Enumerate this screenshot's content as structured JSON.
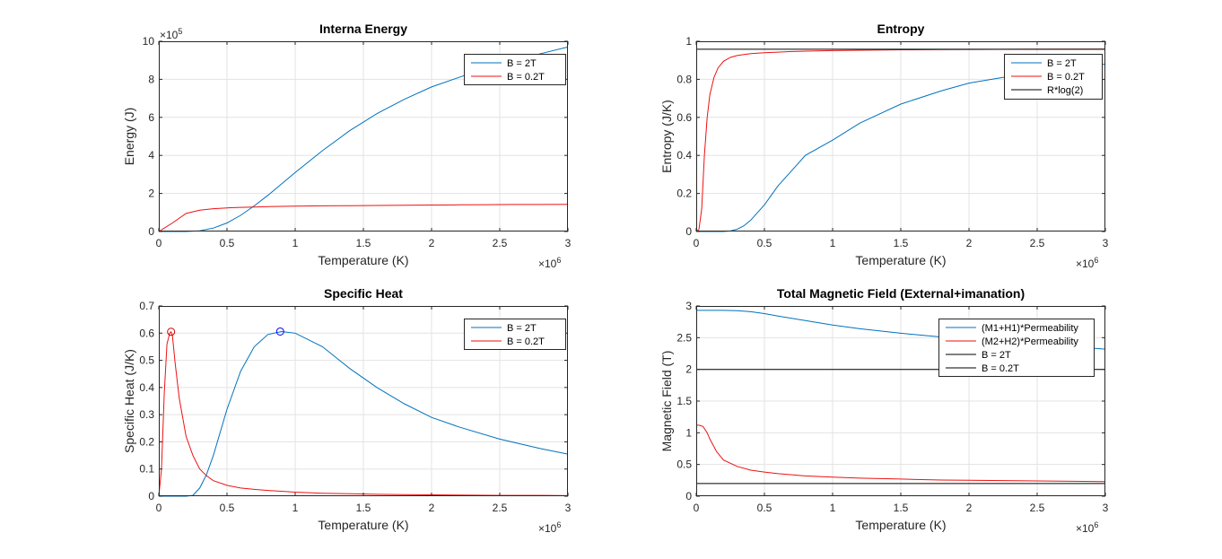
{
  "chart_data": [
    {
      "type": "line",
      "title": "Interna Energy",
      "xlabel": "Temperature (K)",
      "ylabel": "Energy (J)",
      "x_multiplier": "×10",
      "x_exponent": "6",
      "y_multiplier": "×10",
      "y_exponent": "5",
      "xlim": [
        0,
        3
      ],
      "ylim": [
        0,
        10
      ],
      "x_ticks": [
        "0",
        "0.5",
        "1",
        "1.5",
        "2",
        "2.5",
        "3"
      ],
      "y_ticks": [
        "0",
        "2",
        "4",
        "6",
        "8",
        "10"
      ],
      "grid": true,
      "legend": "top-right",
      "x": [
        0,
        0.1,
        0.2,
        0.3,
        0.4,
        0.5,
        0.6,
        0.7,
        0.8,
        0.9,
        1.0,
        1.2,
        1.4,
        1.6,
        1.8,
        2.0,
        2.2,
        2.4,
        2.6,
        2.8,
        3.0
      ],
      "series": [
        {
          "name": "B = 2T",
          "color": "#0072BD",
          "values": [
            0,
            0,
            0,
            0.04,
            0.18,
            0.45,
            0.85,
            1.35,
            1.9,
            2.5,
            3.1,
            4.25,
            5.3,
            6.2,
            6.95,
            7.6,
            8.1,
            8.6,
            9.0,
            9.35,
            9.7
          ]
        },
        {
          "name": "B = 0.2T",
          "color": "#EE1111",
          "values": [
            0,
            0.45,
            0.95,
            1.12,
            1.2,
            1.24,
            1.27,
            1.29,
            1.31,
            1.32,
            1.33,
            1.35,
            1.36,
            1.37,
            1.38,
            1.39,
            1.4,
            1.41,
            1.42,
            1.42,
            1.43
          ]
        }
      ],
      "markers": []
    },
    {
      "type": "line",
      "title": "Entropy",
      "xlabel": "Temperature (K)",
      "ylabel": "Entropy (J/K)",
      "x_multiplier": "×10",
      "x_exponent": "6",
      "y_multiplier": "",
      "y_exponent": "",
      "xlim": [
        0,
        3
      ],
      "ylim": [
        0,
        1
      ],
      "x_ticks": [
        "0",
        "0.5",
        "1",
        "1.5",
        "2",
        "2.5",
        "3"
      ],
      "y_ticks": [
        "0",
        "0.2",
        "0.4",
        "0.6",
        "0.8",
        "1"
      ],
      "grid": true,
      "legend": "top-right",
      "x": [
        0,
        0.02,
        0.04,
        0.06,
        0.08,
        0.1,
        0.13,
        0.16,
        0.2,
        0.25,
        0.3,
        0.35,
        0.4,
        0.5,
        0.6,
        0.7,
        0.8,
        1.0,
        1.2,
        1.5,
        1.8,
        2.0,
        2.5,
        3.0
      ],
      "series": [
        {
          "name": "B = 2T",
          "color": "#0072BD",
          "values": [
            0,
            0,
            0,
            0,
            0,
            0,
            0,
            0,
            0,
            0.003,
            0.012,
            0.03,
            0.06,
            0.14,
            0.24,
            0.32,
            0.4,
            0.48,
            0.57,
            0.67,
            0.74,
            0.78,
            0.84,
            0.88
          ]
        },
        {
          "name": "B = 0.2T",
          "color": "#EE1111",
          "values": [
            0,
            0.01,
            0.12,
            0.4,
            0.6,
            0.72,
            0.81,
            0.86,
            0.895,
            0.915,
            0.925,
            0.93,
            0.935,
            0.94,
            0.943,
            0.946,
            0.948,
            0.951,
            0.953,
            0.955,
            0.956,
            0.957,
            0.958,
            0.959
          ]
        },
        {
          "name": "R*log(2)",
          "color": "#000000",
          "values": [
            0.958,
            0.958,
            0.958,
            0.958,
            0.958,
            0.958,
            0.958,
            0.958,
            0.958,
            0.958,
            0.958,
            0.958,
            0.958,
            0.958,
            0.958,
            0.958,
            0.958,
            0.958,
            0.958,
            0.958,
            0.958,
            0.958,
            0.958,
            0.958
          ]
        }
      ],
      "markers": []
    },
    {
      "type": "line",
      "title": "Specific Heat",
      "xlabel": "Temperature (K)",
      "ylabel": "Specific Heat (J/K)",
      "x_multiplier": "×10",
      "x_exponent": "6",
      "y_multiplier": "",
      "y_exponent": "",
      "xlim": [
        0,
        3
      ],
      "ylim": [
        0,
        0.7
      ],
      "x_ticks": [
        "0",
        "0.5",
        "1",
        "1.5",
        "2",
        "2.5",
        "3"
      ],
      "y_ticks": [
        "0",
        "0.1",
        "0.2",
        "0.3",
        "0.4",
        "0.5",
        "0.6",
        "0.7"
      ],
      "grid": true,
      "legend": "top-right",
      "x": [
        0,
        0.02,
        0.04,
        0.06,
        0.08,
        0.09,
        0.1,
        0.12,
        0.15,
        0.2,
        0.25,
        0.3,
        0.35,
        0.4,
        0.5,
        0.6,
        0.7,
        0.8,
        0.9,
        1.0,
        1.2,
        1.4,
        1.6,
        1.8,
        2.0,
        2.2,
        2.5,
        2.8,
        3.0
      ],
      "series": [
        {
          "name": "B = 2T",
          "color": "#0072BD",
          "values": [
            0,
            0,
            0,
            0,
            0,
            0,
            0,
            0,
            0,
            0,
            0.003,
            0.03,
            0.08,
            0.15,
            0.32,
            0.46,
            0.55,
            0.595,
            0.606,
            0.6,
            0.55,
            0.47,
            0.4,
            0.34,
            0.29,
            0.255,
            0.21,
            0.175,
            0.155
          ]
        },
        {
          "name": "B = 0.2T",
          "color": "#EE1111",
          "values": [
            0,
            0.1,
            0.38,
            0.56,
            0.6,
            0.605,
            0.59,
            0.49,
            0.36,
            0.22,
            0.15,
            0.1,
            0.075,
            0.057,
            0.04,
            0.03,
            0.025,
            0.021,
            0.018,
            0.015,
            0.011,
            0.009,
            0.007,
            0.006,
            0.005,
            0.004,
            0.003,
            0.003,
            0.002
          ]
        }
      ],
      "markers": [
        {
          "series": "B = 2T",
          "color": "#0000FF",
          "x": 0.89,
          "y": 0.606
        },
        {
          "series": "B = 0.2T",
          "color": "#CC0000",
          "x": 0.09,
          "y": 0.605
        }
      ]
    },
    {
      "type": "line",
      "title": "Total Magnetic Field (External+imanation)",
      "xlabel": "Temperature (K)",
      "ylabel": "Magnetic Field (T)",
      "x_multiplier": "×10",
      "x_exponent": "6",
      "y_multiplier": "",
      "y_exponent": "",
      "xlim": [
        0,
        3
      ],
      "ylim": [
        0,
        3
      ],
      "x_ticks": [
        "0",
        "0.5",
        "1",
        "1.5",
        "2",
        "2.5",
        "3"
      ],
      "y_ticks": [
        "0",
        "0.5",
        "1",
        "1.5",
        "2",
        "2.5",
        "3"
      ],
      "grid": true,
      "legend": "top-right",
      "x": [
        0,
        0.02,
        0.05,
        0.08,
        0.1,
        0.15,
        0.2,
        0.3,
        0.4,
        0.5,
        0.6,
        0.8,
        1.0,
        1.2,
        1.5,
        1.8,
        2.0,
        2.5,
        3.0
      ],
      "series": [
        {
          "name": "(M1+H1)*Permeability",
          "color": "#0072BD",
          "values": [
            2.93,
            2.93,
            2.93,
            2.93,
            2.93,
            2.93,
            2.93,
            2.925,
            2.91,
            2.88,
            2.84,
            2.77,
            2.7,
            2.64,
            2.57,
            2.51,
            2.47,
            2.4,
            2.32
          ]
        },
        {
          "name": "(M2+H2)*Permeability",
          "color": "#EE1111",
          "values": [
            1.12,
            1.12,
            1.1,
            1.0,
            0.9,
            0.7,
            0.57,
            0.47,
            0.41,
            0.38,
            0.355,
            0.32,
            0.3,
            0.285,
            0.27,
            0.255,
            0.25,
            0.24,
            0.23
          ]
        },
        {
          "name": "B = 2T",
          "color": "#000000",
          "values": [
            2,
            2,
            2,
            2,
            2,
            2,
            2,
            2,
            2,
            2,
            2,
            2,
            2,
            2,
            2,
            2,
            2,
            2,
            2
          ]
        },
        {
          "name": "B = 0.2T",
          "color": "#000000",
          "values": [
            0.2,
            0.2,
            0.2,
            0.2,
            0.2,
            0.2,
            0.2,
            0.2,
            0.2,
            0.2,
            0.2,
            0.2,
            0.2,
            0.2,
            0.2,
            0.2,
            0.2,
            0.2,
            0.2
          ]
        }
      ],
      "markers": []
    }
  ]
}
